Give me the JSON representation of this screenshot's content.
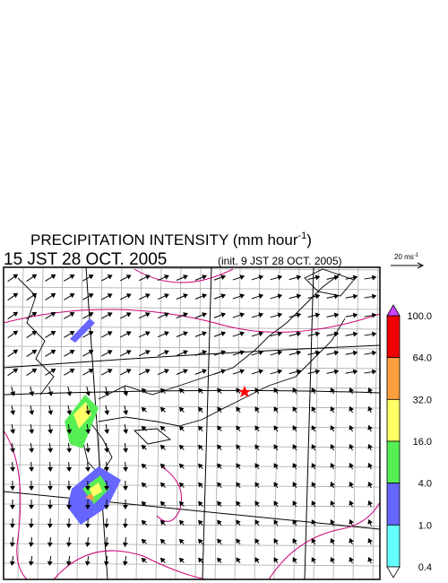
{
  "title": {
    "text": "PRECIPITATION INTENSITY (mm hour",
    "superscript": "-1",
    "close": ")"
  },
  "valid_time": "15 JST 28 OCT. 2005",
  "init_time": "(init. 9 JST 28 OCT. 2005)",
  "wind_reference": {
    "text": "20 ms",
    "superscript": "-1"
  },
  "legend": {
    "labels": [
      "100.0",
      "64.0",
      "32.0",
      "16.0",
      "4.0",
      "1.0",
      "0.4"
    ],
    "colors": [
      "#ee0000",
      "#ffa040",
      "#ffff66",
      "#55ee55",
      "#6666ff",
      "#66ffff"
    ],
    "over_color": "#cc44ff",
    "under_color": "#ffffff"
  }
}
